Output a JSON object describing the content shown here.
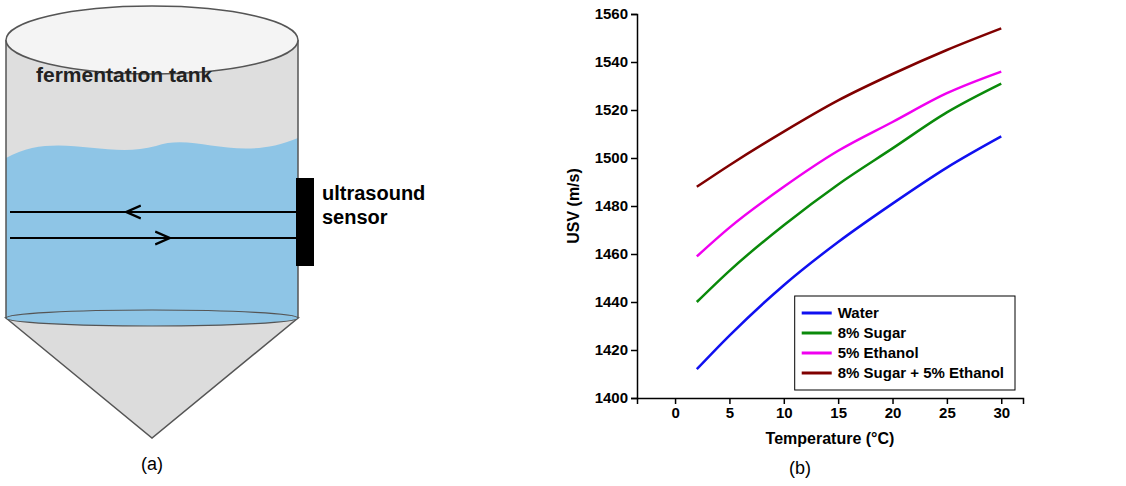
{
  "panel_labels": [
    "(a)",
    "(b)"
  ],
  "diagram": {
    "tank_label": "fermentation tank",
    "sensor_label": "ultrasound sensor"
  },
  "chart_data": {
    "type": "line",
    "x_label": "Temperature (°C)",
    "y_label": "USV (m/s)",
    "x": [
      2,
      5,
      10,
      15,
      20,
      25,
      30
    ],
    "series": [
      {
        "name": "Water",
        "color": "#1010f0",
        "values": [
          1412,
          1426,
          1447,
          1465,
          1481,
          1496,
          1509
        ]
      },
      {
        "name": "8% Sugar",
        "color": "#0a8a0a",
        "values": [
          1440,
          1453,
          1472,
          1489,
          1504,
          1519,
          1531
        ]
      },
      {
        "name": "5% Ethanol",
        "color": "#f000f0",
        "values": [
          1459,
          1471,
          1488,
          1503,
          1515,
          1527,
          1536
        ]
      },
      {
        "name": "8% Sugar + 5% Ethanol",
        "color": "#800000",
        "values": [
          1488,
          1497,
          1511,
          1524,
          1535,
          1545,
          1554
        ]
      }
    ],
    "xlim": [
      -3.5,
      32
    ],
    "xticks": [
      0,
      5,
      10,
      15,
      20,
      25,
      30
    ],
    "ylim": [
      1400,
      1560
    ],
    "yticks": [
      1400,
      1420,
      1440,
      1460,
      1480,
      1500,
      1520,
      1540,
      1560
    ],
    "grid": false,
    "legend": "lower right"
  }
}
